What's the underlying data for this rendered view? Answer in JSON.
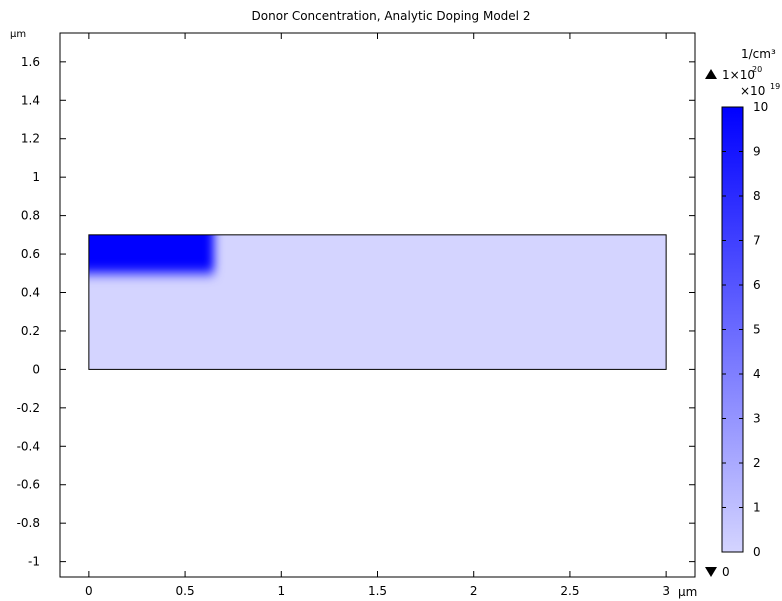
{
  "chart_data": {
    "type": "heatmap",
    "title": "Donor Concentration, Analytic Doping Model 2",
    "x_unit": "µm",
    "y_unit": "µm",
    "xlim": [
      -0.15,
      3.15
    ],
    "ylim": [
      -1.08,
      1.75
    ],
    "x_ticks": [
      "0",
      "0.5",
      "1",
      "1.5",
      "2",
      "2.5",
      "3"
    ],
    "x_tick_values": [
      0,
      0.5,
      1,
      1.5,
      2,
      2.5,
      3
    ],
    "y_ticks": [
      "1.6",
      "1.4",
      "1.2",
      "1",
      "0.8",
      "0.6",
      "0.4",
      "0.2",
      "0",
      "-0.2",
      "-0.4",
      "-0.6",
      "-0.8",
      "-1"
    ],
    "y_tick_values": [
      1.6,
      1.4,
      1.2,
      1.0,
      0.8,
      0.6,
      0.4,
      0.2,
      0,
      -0.2,
      -0.4,
      -0.6,
      -0.8,
      -1.0
    ],
    "domain": {
      "x": [
        0,
        3
      ],
      "y": [
        0,
        0.7
      ]
    },
    "doped_region": {
      "x": [
        0,
        0.65
      ],
      "y": [
        0.5,
        0.7
      ]
    },
    "region_values_x1e19": {
      "doped": 10,
      "background": 0
    },
    "colorbar": {
      "unit": "1/cm³",
      "max_label_base": "1×10",
      "max_label_exp": "20",
      "scale_base": "×10",
      "scale_exp": "19",
      "min_label": "0",
      "ticks": [
        "10",
        "9",
        "8",
        "7",
        "6",
        "5",
        "4",
        "3",
        "2",
        "1",
        "0"
      ],
      "tick_values": [
        10,
        9,
        8,
        7,
        6,
        5,
        4,
        3,
        2,
        1,
        0
      ],
      "range": [
        0,
        10
      ],
      "color_min": "#d4d4ff",
      "color_max": "#0000ff"
    },
    "colors": {
      "axis": "#000000",
      "background": "#ffffff"
    }
  }
}
